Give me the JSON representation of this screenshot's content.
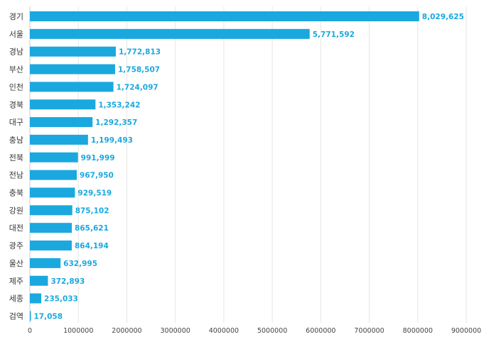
{
  "chart_data": {
    "type": "bar",
    "orientation": "horizontal",
    "categories": [
      "경기",
      "서울",
      "경남",
      "부산",
      "인천",
      "경북",
      "대구",
      "충남",
      "전북",
      "전남",
      "충북",
      "강원",
      "대전",
      "광주",
      "울산",
      "제주",
      "세종",
      "검역"
    ],
    "values": [
      8029625,
      5771592,
      1772813,
      1758507,
      1724097,
      1353242,
      1292357,
      1199493,
      991999,
      967950,
      929519,
      875102,
      865621,
      864194,
      632995,
      372893,
      235033,
      17058
    ],
    "value_labels": [
      "8,029,625",
      "5,771,592",
      "1,772,813",
      "1,758,507",
      "1,724,097",
      "1,353,242",
      "1,292,357",
      "1,199,493",
      "991,999",
      "967,950",
      "929,519",
      "875,102",
      "865,621",
      "864,194",
      "632,995",
      "372,893",
      "235,033",
      "17,058"
    ],
    "xlim": [
      0,
      9000000
    ],
    "x_ticks": [
      0,
      1000000,
      2000000,
      3000000,
      4000000,
      5000000,
      6000000,
      7000000,
      8000000,
      9000000
    ],
    "x_tick_labels": [
      "0",
      "1000000",
      "2000000",
      "3000000",
      "4000000",
      "5000000",
      "6000000",
      "7000000",
      "8000000",
      "9000000"
    ],
    "title": "",
    "xlabel": "",
    "ylabel": "",
    "grid": "vertical",
    "legend": "none",
    "bar_color": "#1aa8df",
    "label_color": "#1aa8df",
    "grid_color": "#e6e6e6"
  }
}
